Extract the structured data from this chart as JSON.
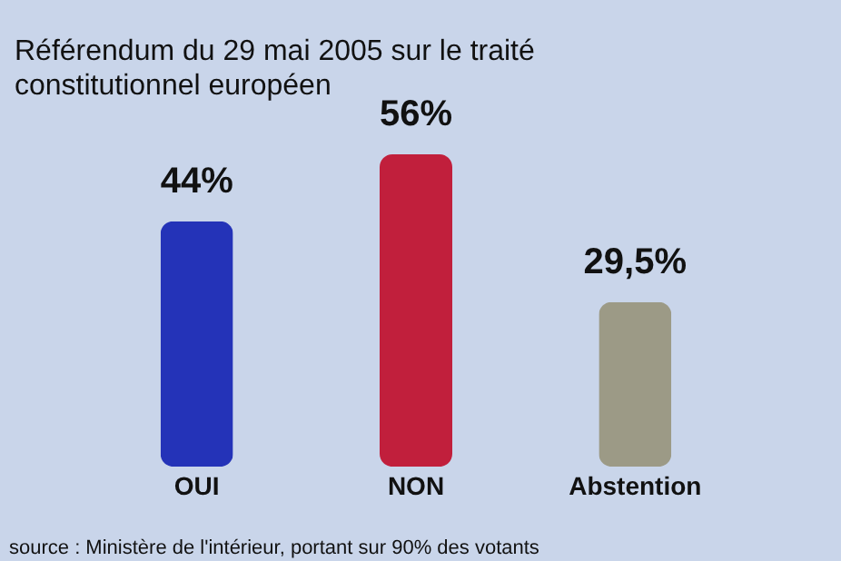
{
  "chart_data": {
    "type": "bar",
    "title": "Référendum du 29 mai 2005 sur le traité constitutionnel européen",
    "categories": [
      "OUI",
      "NON",
      "Abstention"
    ],
    "values": [
      44,
      56,
      29.5
    ],
    "colors": [
      "#2433b8",
      "#c11f3c",
      "#9c9a86"
    ],
    "value_labels": [
      "44%",
      "56%",
      "29,5%"
    ],
    "annotations": [
      "source : Ministère de l'intérieur, portant sur 90% des votants"
    ]
  }
}
